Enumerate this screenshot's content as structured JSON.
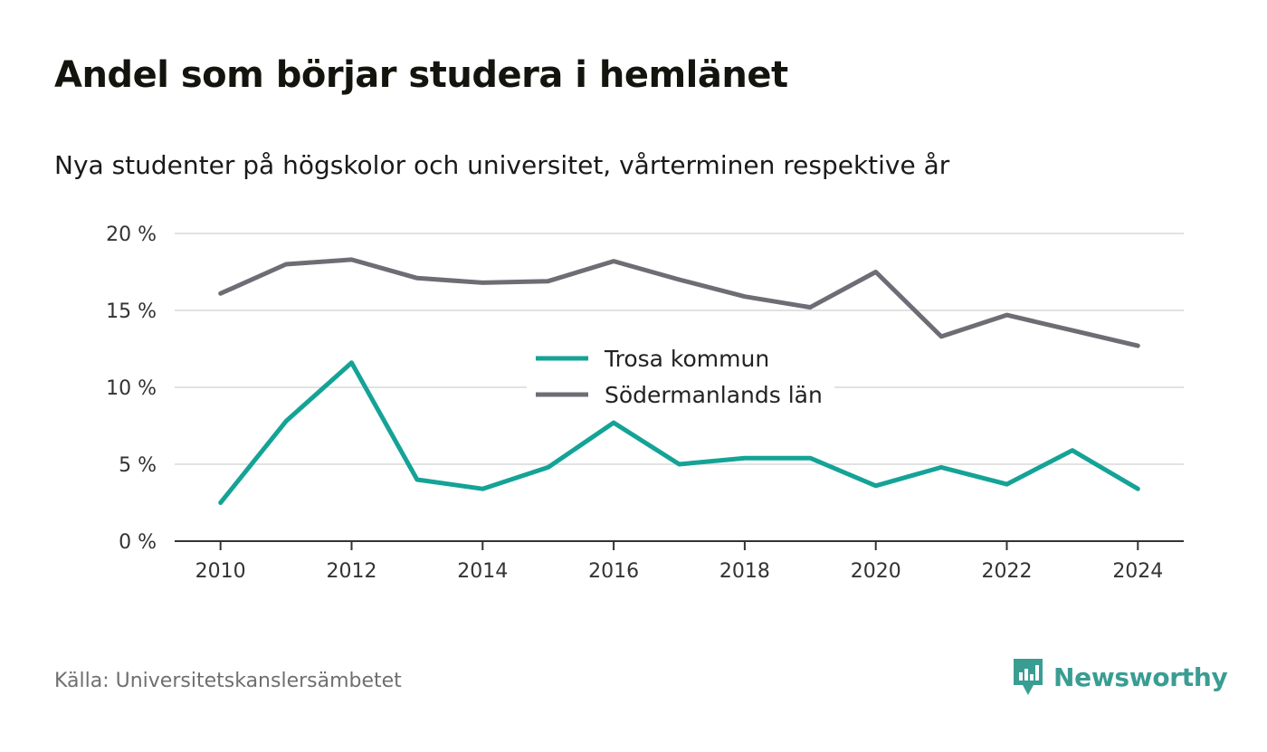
{
  "title": "Andel som börjar studera i hemlänet",
  "subtitle": "Nya studenter på högskolor och universitet, vårterminen respektive år",
  "source": "Källa: Universitetskanslersämbetet",
  "brand": {
    "name": "Newsworthy",
    "icon": "newsworthy-logo-icon",
    "color": "#3a9d92"
  },
  "chart_data": {
    "type": "line",
    "x": [
      2010,
      2011,
      2012,
      2013,
      2014,
      2015,
      2016,
      2017,
      2018,
      2019,
      2020,
      2021,
      2022,
      2023,
      2024
    ],
    "x_ticks": [
      "2010",
      "2012",
      "2014",
      "2016",
      "2018",
      "2020",
      "2022",
      "2024"
    ],
    "x_tick_values": [
      2010,
      2012,
      2014,
      2016,
      2018,
      2020,
      2022,
      2024
    ],
    "y_ticks": [
      "0 %",
      "5 %",
      "10 %",
      "15 %",
      "20 %"
    ],
    "y_tick_values": [
      0,
      5,
      10,
      15,
      20
    ],
    "ylim": [
      0,
      20
    ],
    "xlim": [
      2009.3,
      2024.7
    ],
    "grid": true,
    "legend_position": "center",
    "series": [
      {
        "name": "Trosa kommun",
        "color": "#14a396",
        "values": [
          2.5,
          7.8,
          11.6,
          4.0,
          3.4,
          4.8,
          7.7,
          5.0,
          5.4,
          5.4,
          3.6,
          4.8,
          3.7,
          5.9,
          3.4
        ]
      },
      {
        "name": "Södermanlands län",
        "color": "#6e6d75",
        "values": [
          16.1,
          18.0,
          18.3,
          17.1,
          16.8,
          16.9,
          18.2,
          17.0,
          15.9,
          15.2,
          17.5,
          13.3,
          14.7,
          13.7,
          12.7
        ]
      }
    ]
  }
}
